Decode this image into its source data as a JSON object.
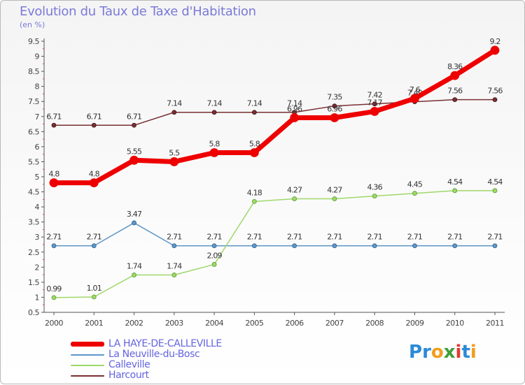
{
  "chart_data": {
    "type": "line",
    "title": "Evolution du Taux de Taxe d'Habitation",
    "ylabel": "(en %)",
    "xlabel": "",
    "x": [
      "2000",
      "2001",
      "2002",
      "2003",
      "2004",
      "2005",
      "2006",
      "2007",
      "2008",
      "2009",
      "2010",
      "2011"
    ],
    "ylim": [
      0.5,
      9.5
    ],
    "yticks": [
      "0.5",
      "1",
      "1.5",
      "2",
      "2.5",
      "3",
      "3.5",
      "4",
      "4.5",
      "5",
      "5.5",
      "6",
      "6.5",
      "7",
      "7.5",
      "8",
      "8.5",
      "9",
      "9.5"
    ],
    "grid": false,
    "legend_position": "bottom-left",
    "series": [
      {
        "name": "Harcourt",
        "color": "#7a2f33",
        "values": [
          6.71,
          6.71,
          6.71,
          7.14,
          7.14,
          7.14,
          7.14,
          7.35,
          7.42,
          7.49,
          7.56,
          7.56
        ],
        "labels": [
          "6.71",
          "6.71",
          "6.71",
          "7.14",
          "7.14",
          "7.14",
          "7.14",
          "7.35",
          "7.42",
          "7.49",
          "7.56",
          "7.56"
        ]
      },
      {
        "name": "La Neuville-du-Bosc",
        "color": "#5e96c8",
        "values": [
          2.71,
          2.71,
          3.47,
          2.71,
          2.71,
          2.71,
          2.71,
          2.71,
          2.71,
          2.71,
          2.71,
          2.71
        ],
        "labels": [
          "2.71",
          "2.71",
          "3.47",
          "2.71",
          "2.71",
          "2.71",
          "2.71",
          "2.71",
          "2.71",
          "2.71",
          "2.71",
          "2.71"
        ]
      },
      {
        "name": "Calleville",
        "color": "#9fd86a",
        "values": [
          0.99,
          1.01,
          1.74,
          1.74,
          2.09,
          4.18,
          4.27,
          4.27,
          4.36,
          4.45,
          4.54,
          4.54
        ],
        "labels": [
          "0.99",
          "1.01",
          "1.74",
          "1.74",
          "2.09",
          "4.18",
          "4.27",
          "4.27",
          "4.36",
          "4.45",
          "4.54",
          "4.54"
        ]
      },
      {
        "name": "LA HAYE-DE-CALLEVILLE",
        "color": "#ee0000",
        "values": [
          4.8,
          4.8,
          5.55,
          5.5,
          5.8,
          5.8,
          6.96,
          6.96,
          7.17,
          7.6,
          8.36,
          9.2
        ],
        "labels": [
          "4.8",
          "4.8",
          "5.55",
          "5.5",
          "5.8",
          "5.8",
          "6.96",
          "6.96",
          "7.17",
          "7.6",
          "8.36",
          "9.2"
        ]
      }
    ],
    "legend": [
      {
        "name": "LA HAYE-DE-CALLEVILLE",
        "color": "#ee0000"
      },
      {
        "name": "La Neuville-du-Bosc",
        "color": "#5e96c8"
      },
      {
        "name": "Calleville",
        "color": "#9fd86a"
      },
      {
        "name": "Harcourt",
        "color": "#7a2f33"
      }
    ]
  },
  "brand": {
    "letters": [
      {
        "char": "P",
        "color": "#2b8ad6"
      },
      {
        "char": "r",
        "color": "#2b8ad6"
      },
      {
        "char": "o",
        "color": "#f29d1f"
      },
      {
        "char": "x",
        "color": "#3f9e38"
      },
      {
        "char": "i",
        "color": "#e33a2e"
      },
      {
        "char": "t",
        "color": "#2b8ad6"
      },
      {
        "char": "i",
        "color": "#f29d1f"
      }
    ]
  }
}
